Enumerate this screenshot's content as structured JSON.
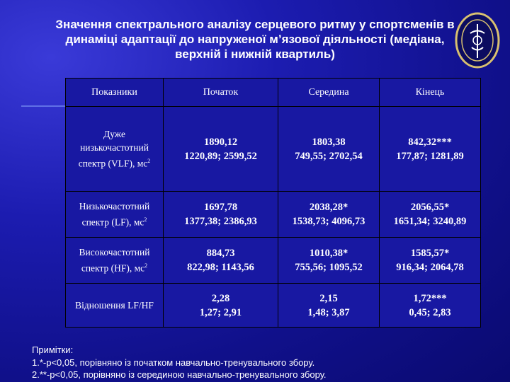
{
  "title": "Значення спектрального аналізу серцевого ритму у спортсменів в динаміці адаптації до напруженої м’язової діяльності (медіана, верхній і нижній квартиль)",
  "table": {
    "header": [
      "Показники",
      "Початок",
      "Середина",
      "Кінець"
    ],
    "rows": [
      {
        "label": "Дуже низькочастотний спектр (VLF), мс",
        "sup": "2",
        "cells": [
          [
            "1890,12",
            "1220,89; 2599,52"
          ],
          [
            "1803,38",
            "749,55; 2702,54"
          ],
          [
            "842,32***",
            "177,87; 1281,89"
          ]
        ]
      },
      {
        "label": "Низькочастотний спектр (LF), мс",
        "sup": "2",
        "cells": [
          [
            "1697,78",
            "1377,38; 2386,93"
          ],
          [
            "2038,28*",
            "1538,73; 4096,73"
          ],
          [
            "2056,55*",
            "1651,34; 3240,89"
          ]
        ]
      },
      {
        "label": "Високочастотний спектр (HF), мс",
        "sup": "2",
        "cells": [
          [
            "884,73",
            "822,98; 1143,56"
          ],
          [
            "1010,38*",
            "755,56; 1095,52"
          ],
          [
            "1585,57*",
            "916,34; 2064,78"
          ]
        ]
      },
      {
        "label": "Відношення LF/HF",
        "cells": [
          [
            "2,28",
            "1,27; 2,91"
          ],
          [
            "2,15",
            "1,48; 3,87"
          ],
          [
            "1,72***",
            "0,45; 2,83"
          ]
        ]
      }
    ]
  },
  "notes": [
    "Примітки:",
    "1.*-p<0,05, порівняно із початком навчально-тренувального збору.",
    "2.**-p<0,05, порівняно із серединою навчально-тренувального збору."
  ]
}
